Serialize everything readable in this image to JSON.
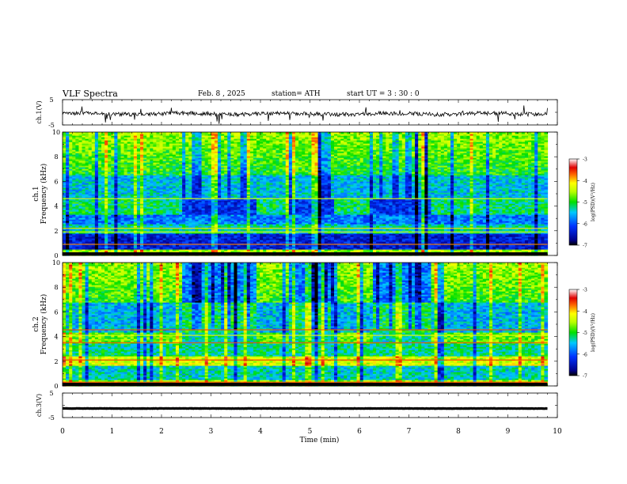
{
  "header": {
    "title": "VLF  Spectra",
    "date": "Feb. 8  , 2025",
    "station": "station= ATH",
    "start_ut": "start  UT  =   3  : 30 : 0"
  },
  "chart_data": [
    {
      "id": "ch1-waveform",
      "type": "line",
      "ylabel": "ch.1(V)",
      "ylim": [
        -5,
        5
      ],
      "yticks": [
        "5",
        "-5"
      ],
      "xlim": [
        0,
        10
      ],
      "series": [
        {
          "values_summary": "noise around -1 V, amplitude about ±1 V with short spikes"
        }
      ]
    },
    {
      "id": "ch1-spectrogram",
      "type": "heatmap",
      "ylabel": "ch.1\nFrequency  (kHz)",
      "ylabel_line1": "ch.1",
      "ylabel_line2": "Frequency  (kHz)",
      "ylim": [
        0,
        10
      ],
      "yticks": [
        "0",
        "2",
        "4",
        "6",
        "8",
        "10"
      ],
      "xlim": [
        0,
        10
      ],
      "data_end_min": 9.8,
      "quiet_intervals_min": [
        [
          2.4,
          3.9
        ],
        [
          4.6,
          5.5
        ],
        [
          6.25,
          7.45
        ]
      ],
      "colorbar": {
        "label": "log(PSD)(V²/Hz)",
        "ticks": [
          "-3",
          "-4",
          "-5",
          "-6",
          "-7"
        ],
        "range": [
          -7,
          -3
        ]
      }
    },
    {
      "id": "ch2-spectrogram",
      "type": "heatmap",
      "ylabel": "ch.2\nFrequency  (kHz)",
      "ylabel_line1": "ch.2",
      "ylabel_line2": "Frequency  (kHz)",
      "ylim": [
        0,
        10
      ],
      "yticks": [
        "0",
        "2",
        "4",
        "6",
        "8",
        "10"
      ],
      "xlim": [
        0,
        10
      ],
      "data_end_min": 9.8,
      "quiet_intervals_min": [
        [
          2.4,
          3.9
        ],
        [
          4.6,
          5.5
        ],
        [
          6.25,
          7.45
        ]
      ],
      "colorbar": {
        "label": "log(PSD)(V²/Hz)",
        "ticks": [
          "-3",
          "-4",
          "-5",
          "-6",
          "-7"
        ],
        "range": [
          -7,
          -3
        ]
      }
    },
    {
      "id": "ch3-waveform",
      "type": "line",
      "ylabel": "ch.3(V)",
      "ylim": [
        -5,
        5
      ],
      "yticks": [
        "5",
        "-5"
      ],
      "xlim": [
        0,
        10
      ],
      "xticks": [
        "0",
        "1",
        "2",
        "3",
        "4",
        "5",
        "6",
        "7",
        "8",
        "9",
        "10"
      ],
      "xlabel": "Time  (min)",
      "series": [
        {
          "values_summary": "flat at about -1.3 V with tiny noise"
        }
      ]
    }
  ],
  "colors": {
    "frame": "#000000",
    "trace": "#000000"
  }
}
